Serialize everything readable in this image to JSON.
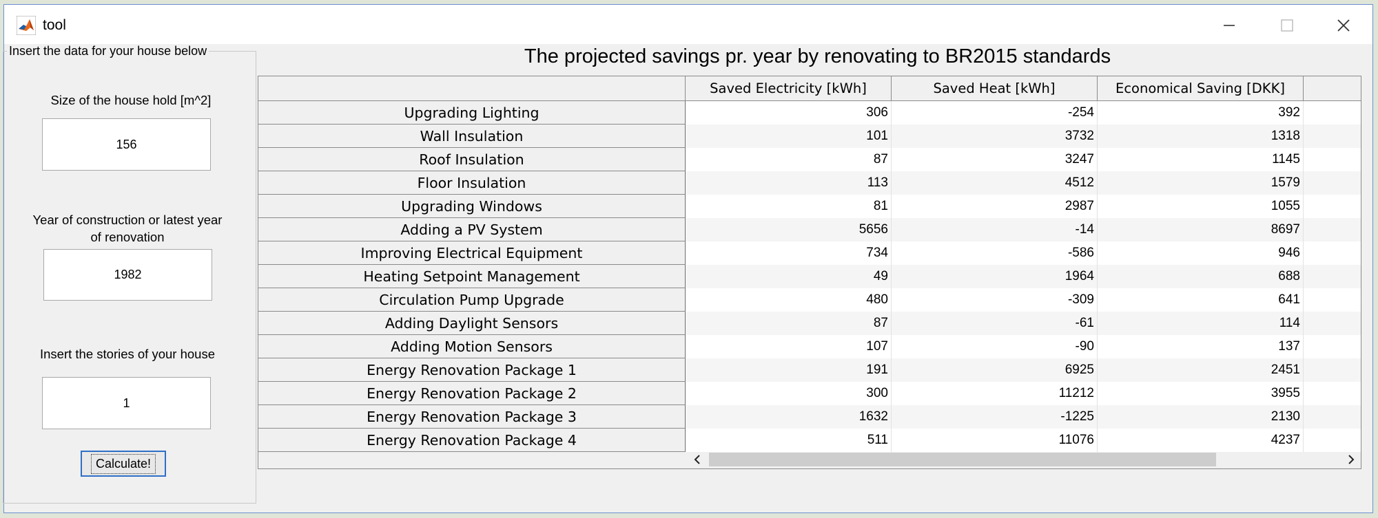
{
  "window": {
    "title": "tool"
  },
  "input_panel": {
    "legend": "Insert the data for your house below",
    "size_label": "Size of the house hold [m^2]",
    "size_value": "156",
    "year_label": "Year of construction or latest year of renovation",
    "year_value": "1982",
    "stories_label": "Insert the stories of your house",
    "stories_value": "1",
    "calculate_label": "Calculate!"
  },
  "results": {
    "title": "The projected savings pr. year by renovating to BR2015 standards",
    "columns": [
      "Saved Electricity [kWh]",
      "Saved Heat [kWh]",
      "Economical Saving [DKK]"
    ],
    "rows": [
      {
        "label": "Upgrading Lighting",
        "values": [
          "306",
          "-254",
          "392"
        ]
      },
      {
        "label": "Wall Insulation",
        "values": [
          "101",
          "3732",
          "1318"
        ]
      },
      {
        "label": "Roof Insulation",
        "values": [
          "87",
          "3247",
          "1145"
        ]
      },
      {
        "label": "Floor Insulation",
        "values": [
          "113",
          "4512",
          "1579"
        ]
      },
      {
        "label": "Upgrading Windows",
        "values": [
          "81",
          "2987",
          "1055"
        ]
      },
      {
        "label": "Adding a PV System",
        "values": [
          "5656",
          "-14",
          "8697"
        ]
      },
      {
        "label": "Improving Electrical Equipment",
        "values": [
          "734",
          "-586",
          "946"
        ]
      },
      {
        "label": "Heating Setpoint Management",
        "values": [
          "49",
          "1964",
          "688"
        ]
      },
      {
        "label": "Circulation Pump Upgrade",
        "values": [
          "480",
          "-309",
          "641"
        ]
      },
      {
        "label": "Adding Daylight Sensors",
        "values": [
          "87",
          "-61",
          "114"
        ]
      },
      {
        "label": "Adding Motion Sensors",
        "values": [
          "107",
          "-90",
          "137"
        ]
      },
      {
        "label": "Energy Renovation Package 1",
        "values": [
          "191",
          "6925",
          "2451"
        ]
      },
      {
        "label": "Energy Renovation Package 2",
        "values": [
          "300",
          "11212",
          "3955"
        ]
      },
      {
        "label": "Energy Renovation Package 3",
        "values": [
          "1632",
          "-1225",
          "2130"
        ]
      },
      {
        "label": "Energy Renovation Package 4",
        "values": [
          "511",
          "11076",
          "4237"
        ]
      }
    ]
  },
  "icons": {
    "app": "matlab-icon",
    "minimize": "minimize-icon",
    "maximize": "maximize-icon",
    "close": "close-icon",
    "scroll_left": "chevron-left-icon",
    "scroll_right": "chevron-right-icon"
  },
  "colors": {
    "window_border": "#6b8fd1",
    "button_focus": "#2d6fc7"
  }
}
